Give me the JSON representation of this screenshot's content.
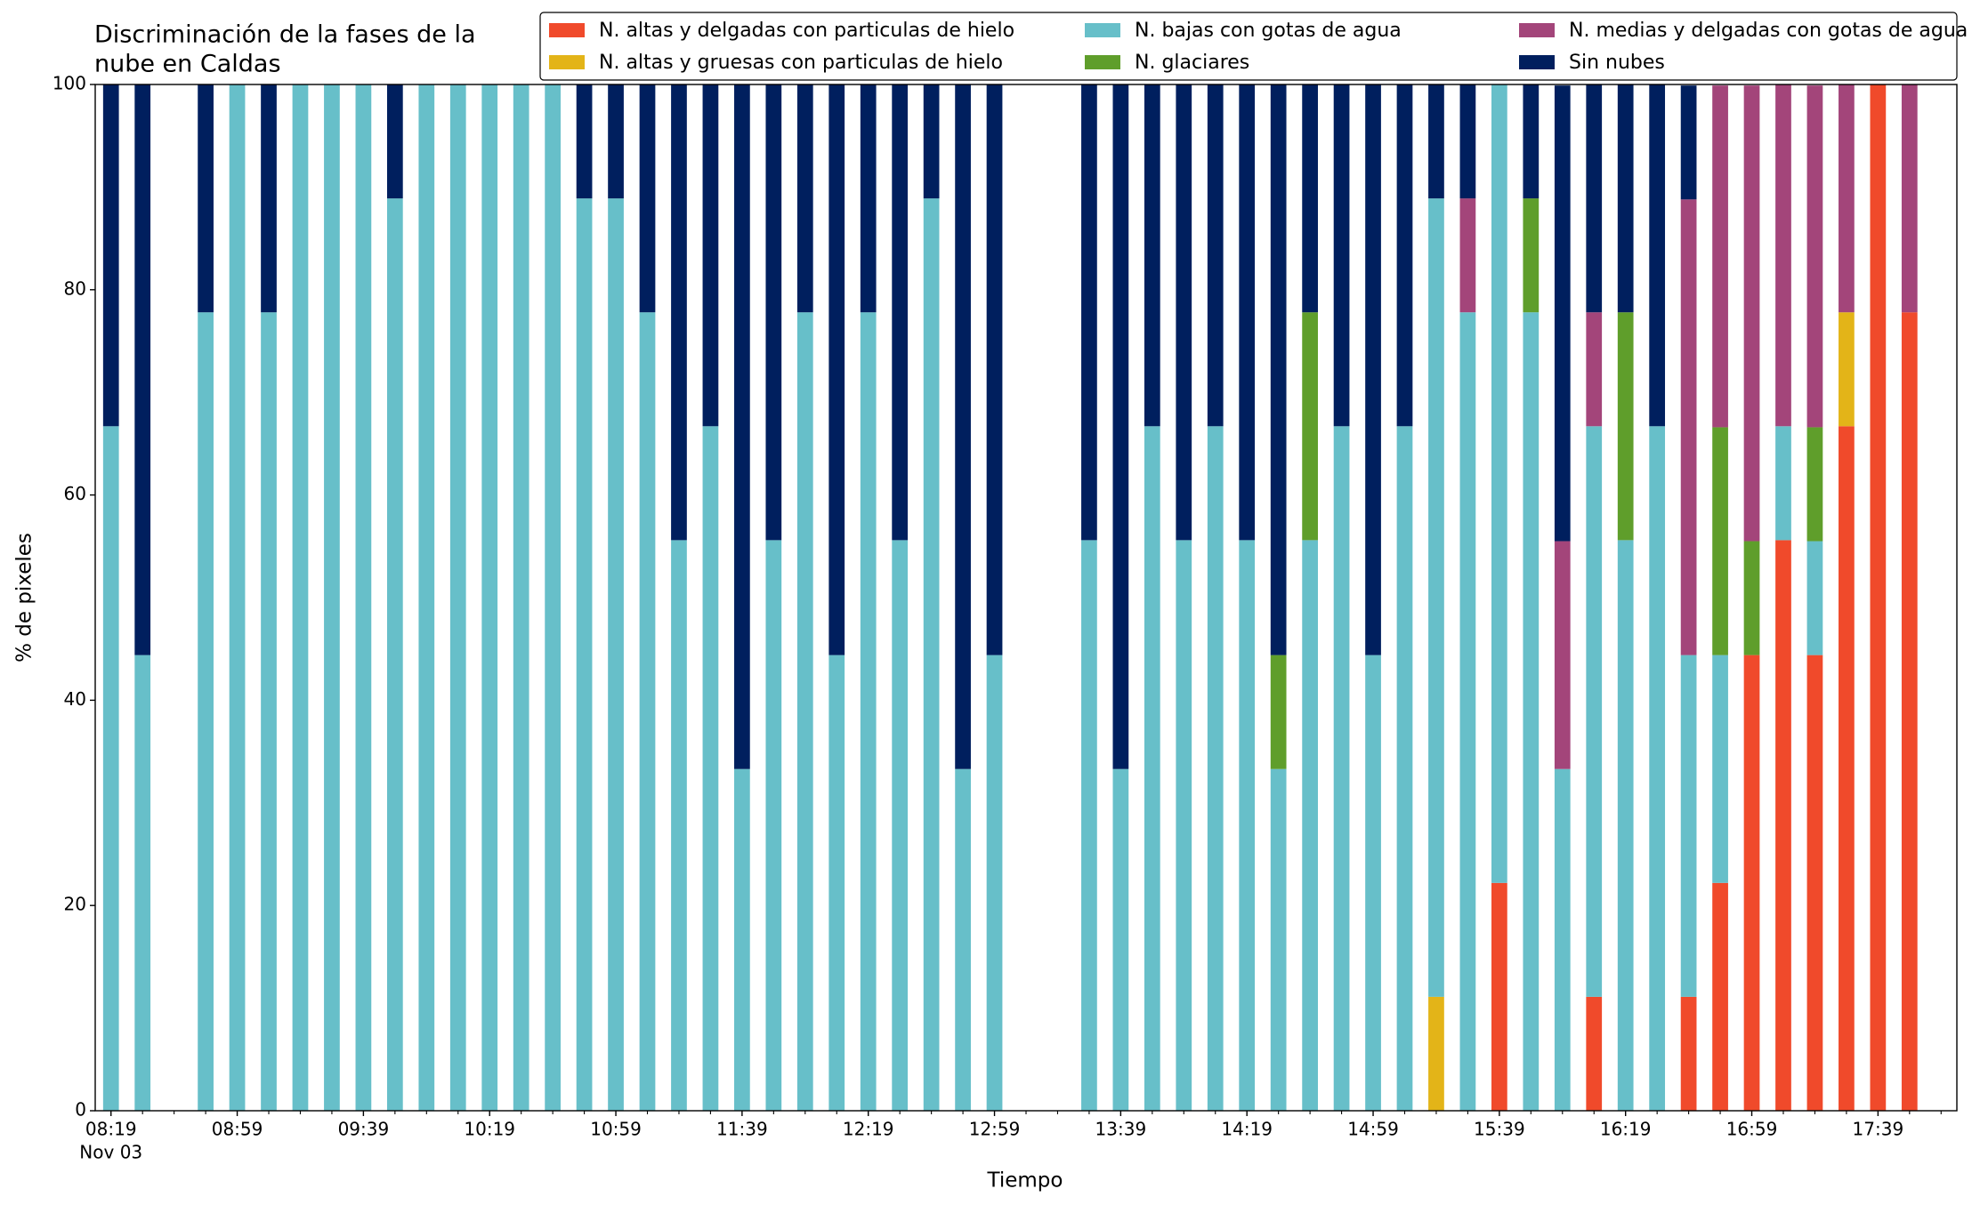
{
  "chart_data": {
    "type": "stacked_bar",
    "title": [
      "Discriminación de la fases de la",
      "nube en Caldas"
    ],
    "xlabel": "Tiempo",
    "ylabel": "% de pixeles",
    "x_date_label": "Nov 03",
    "x": [
      "08:19",
      "08:29",
      "08:49",
      "08:59",
      "09:09",
      "09:19",
      "09:29",
      "09:39",
      "09:49",
      "09:59",
      "10:09",
      "10:19",
      "10:29",
      "10:39",
      "10:49",
      "10:59",
      "11:09",
      "11:19",
      "11:29",
      "11:39",
      "11:49",
      "11:59",
      "12:09",
      "12:19",
      "12:29",
      "12:39",
      "12:49",
      "12:59",
      "13:29",
      "13:39",
      "13:49",
      "13:59",
      "14:09",
      "14:19",
      "14:29",
      "14:39",
      "14:49",
      "14:59",
      "15:09",
      "15:19",
      "15:29",
      "15:39",
      "15:49",
      "15:59",
      "16:09",
      "16:19",
      "16:29",
      "16:39",
      "16:49",
      "16:59",
      "17:09",
      "17:19",
      "17:29",
      "17:39",
      "17:49"
    ],
    "series": [
      {
        "name": "N. altas y delgadas con particulas de hielo",
        "color": "#f04a2b",
        "values": [
          0,
          0,
          0,
          0,
          0,
          0,
          0,
          0,
          0,
          0,
          0,
          0,
          0,
          0,
          0,
          0,
          0,
          0,
          0,
          0,
          0,
          0,
          0,
          0,
          0,
          0,
          0,
          0,
          0,
          0,
          0,
          0,
          0,
          0,
          0,
          0,
          0,
          0,
          0,
          0,
          0,
          22.2,
          0,
          0,
          11.1,
          0,
          0,
          11.1,
          22.2,
          44.4,
          55.6,
          44.4,
          66.7,
          100,
          77.8
        ]
      },
      {
        "name": "N. altas y gruesas con particulas de hielo",
        "color": "#e3b418",
        "values": [
          0,
          0,
          0,
          0,
          0,
          0,
          0,
          0,
          0,
          0,
          0,
          0,
          0,
          0,
          0,
          0,
          0,
          0,
          0,
          0,
          0,
          0,
          0,
          0,
          0,
          0,
          0,
          0,
          0,
          0,
          0,
          0,
          0,
          0,
          0,
          0,
          0,
          0,
          0,
          11.1,
          0,
          0,
          0,
          0,
          0,
          0,
          0,
          0,
          0,
          0,
          0,
          0,
          11.1,
          0,
          0
        ]
      },
      {
        "name": "N. bajas con gotas de agua",
        "color": "#67bfc9",
        "values": [
          66.7,
          44.4,
          77.8,
          100,
          77.8,
          100,
          100,
          100,
          88.9,
          100,
          100,
          100,
          100,
          100,
          88.9,
          88.9,
          77.8,
          55.6,
          66.7,
          33.3,
          55.6,
          77.8,
          44.4,
          77.8,
          55.6,
          88.9,
          33.3,
          44.4,
          55.6,
          33.3,
          66.7,
          55.6,
          66.7,
          55.6,
          33.3,
          55.6,
          66.7,
          44.4,
          66.7,
          77.8,
          77.8,
          77.8,
          77.8,
          33.3,
          55.6,
          55.6,
          66.7,
          33.3,
          22.2,
          0,
          11.1,
          11.1,
          0,
          0,
          0
        ]
      },
      {
        "name": "N. glaciares",
        "color": "#5f9e2b",
        "values": [
          0,
          0,
          0,
          0,
          0,
          0,
          0,
          0,
          0,
          0,
          0,
          0,
          0,
          0,
          0,
          0,
          0,
          0,
          0,
          0,
          0,
          0,
          0,
          0,
          0,
          0,
          0,
          0,
          0,
          0,
          0,
          0,
          0,
          0,
          11.1,
          22.2,
          0,
          0,
          0,
          0,
          0,
          0,
          11.1,
          0,
          0,
          22.2,
          0,
          0,
          22.2,
          11.1,
          0,
          11.1,
          0,
          0,
          0
        ]
      },
      {
        "name": "N. medias y delgadas con gotas de agua",
        "color": "#a3457a",
        "values": [
          0,
          0,
          0,
          0,
          0,
          0,
          0,
          0,
          0,
          0,
          0,
          0,
          0,
          0,
          0,
          0,
          0,
          0,
          0,
          0,
          0,
          0,
          0,
          0,
          0,
          0,
          0,
          0,
          0,
          0,
          0,
          0,
          0,
          0,
          0,
          0,
          0,
          0,
          0,
          0,
          11.1,
          0,
          0,
          22.2,
          11.1,
          0,
          0,
          44.4,
          33.3,
          44.4,
          33.3,
          33.3,
          22.2,
          0,
          22.2
        ]
      },
      {
        "name": "Sin nubes",
        "color": "#001f5e",
        "values": [
          33.3,
          55.6,
          22.2,
          0,
          22.2,
          0,
          0,
          0,
          11.1,
          0,
          0,
          0,
          0,
          0,
          11.1,
          11.1,
          22.2,
          44.4,
          33.3,
          66.7,
          44.4,
          22.2,
          55.6,
          22.2,
          44.4,
          11.1,
          66.7,
          55.6,
          44.4,
          66.7,
          33.3,
          44.4,
          33.3,
          44.4,
          55.6,
          22.2,
          33.3,
          55.6,
          33.3,
          11.1,
          11.1,
          0,
          11.1,
          44.4,
          22.2,
          22.2,
          33.3,
          11.1,
          0,
          0,
          0,
          0,
          0,
          0,
          0
        ]
      }
    ],
    "xlim": [
      "08:14",
      "18:04"
    ],
    "xticks": [
      "08:19",
      "08:59",
      "09:39",
      "10:19",
      "10:59",
      "11:39",
      "12:19",
      "12:59",
      "13:39",
      "14:19",
      "14:59",
      "15:39",
      "16:19",
      "16:59",
      "17:39"
    ],
    "xminorticks": [
      "08:29",
      "08:39",
      "08:49",
      "09:09",
      "09:19",
      "09:29",
      "09:49",
      "09:59",
      "10:09",
      "10:29",
      "10:39",
      "10:49",
      "11:09",
      "11:19",
      "11:29",
      "11:49",
      "11:59",
      "12:09",
      "12:29",
      "12:39",
      "12:49",
      "13:09",
      "13:19",
      "13:29",
      "13:49",
      "13:59",
      "14:09",
      "14:29",
      "14:39",
      "14:49",
      "15:09",
      "15:19",
      "15:29",
      "15:49",
      "15:59",
      "16:09",
      "16:29",
      "16:39",
      "16:49",
      "17:09",
      "17:19",
      "17:29",
      "17:49",
      "17:59"
    ],
    "ylim": [
      0,
      100
    ],
    "yticks": [
      0,
      20,
      40,
      60,
      80,
      100
    ],
    "legend": "upper right",
    "grid": false
  }
}
